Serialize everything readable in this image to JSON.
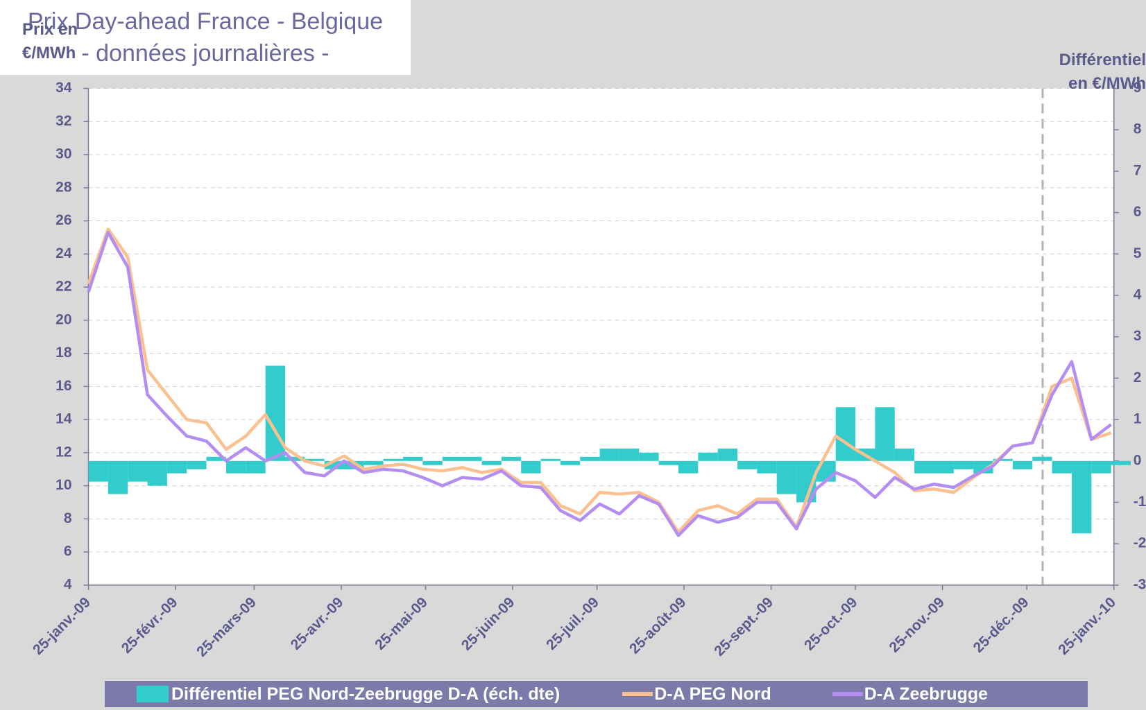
{
  "chart_data": {
    "type": "line",
    "title": "Prix Day-ahead France - Belgique",
    "subtitle": "- données journalières -",
    "ylabel": "Prix en €/MWh",
    "y2label": "Différentiel en €/MWh",
    "x": [
      "2009-01-25",
      "2009-02-01",
      "2009-02-08",
      "2009-02-15",
      "2009-02-22",
      "2009-03-01",
      "2009-03-08",
      "2009-03-15",
      "2009-03-22",
      "2009-03-29",
      "2009-04-05",
      "2009-04-12",
      "2009-04-19",
      "2009-04-26",
      "2009-05-03",
      "2009-05-10",
      "2009-05-17",
      "2009-05-24",
      "2009-05-31",
      "2009-06-07",
      "2009-06-14",
      "2009-06-21",
      "2009-06-28",
      "2009-07-05",
      "2009-07-12",
      "2009-07-19",
      "2009-07-26",
      "2009-08-02",
      "2009-08-09",
      "2009-08-16",
      "2009-08-23",
      "2009-08-30",
      "2009-09-06",
      "2009-09-13",
      "2009-09-20",
      "2009-09-27",
      "2009-10-04",
      "2009-10-11",
      "2009-10-18",
      "2009-10-25",
      "2009-11-01",
      "2009-11-08",
      "2009-11-15",
      "2009-11-22",
      "2009-11-29",
      "2009-12-06",
      "2009-12-13",
      "2009-12-20",
      "2009-12-27",
      "2010-01-03",
      "2010-01-10",
      "2010-01-17",
      "2010-01-24"
    ],
    "series": [
      {
        "name": "Différentiel PEG Nord-Zeebrugge D-A (éch. dte)",
        "type": "bar",
        "axis": "y2",
        "color": "#33cccc",
        "values": [
          -0.5,
          -0.8,
          -0.5,
          -0.6,
          -0.3,
          -0.2,
          0.1,
          -0.3,
          -0.3,
          2.3,
          0.1,
          0.05,
          -0.2,
          -0.2,
          -0.1,
          0.05,
          0.1,
          -0.1,
          0.1,
          0.1,
          -0.1,
          0.1,
          -0.3,
          0.05,
          -0.1,
          0.1,
          0.3,
          0.3,
          0.2,
          -0.1,
          -0.3,
          0.2,
          0.3,
          -0.2,
          -0.3,
          -0.8,
          -1.0,
          -0.5,
          1.3,
          0.3,
          1.3,
          0.3,
          -0.3,
          -0.3,
          -0.2,
          -0.3,
          0.05,
          -0.2,
          0.1,
          -0.3,
          -1.75,
          -0.3,
          -0.1
        ]
      },
      {
        "name": "D-A PEG Nord",
        "type": "line",
        "color": "#fac090",
        "values": [
          22.2,
          25.5,
          23.8,
          17,
          15.5,
          14,
          13.8,
          12.2,
          13,
          14.3,
          12.3,
          11.5,
          11.2,
          11.8,
          11,
          11.2,
          11.3,
          11,
          10.9,
          11.1,
          10.8,
          11,
          10.2,
          10.2,
          8.8,
          8.3,
          9.6,
          9.5,
          9.6,
          9,
          7.2,
          8.5,
          8.8,
          8.3,
          9.2,
          9.2,
          7.5,
          10.8,
          13,
          12.2,
          11.5,
          10.8,
          9.7,
          9.8,
          9.6,
          10.5,
          11.3,
          12.4,
          12.6,
          16,
          16.5,
          12.8,
          13.2
        ]
      },
      {
        "name": "D-A Zeebrugge",
        "type": "line",
        "color": "#b38ef0",
        "values": [
          21.7,
          25.3,
          23.2,
          15.5,
          14.2,
          13,
          12.7,
          11.5,
          12.3,
          11.5,
          12,
          10.8,
          10.6,
          11.5,
          10.8,
          11,
          10.9,
          10.5,
          10,
          10.5,
          10.4,
          10.9,
          10,
          9.9,
          8.5,
          7.9,
          8.9,
          8.3,
          9.4,
          8.9,
          7,
          8.2,
          7.8,
          8.1,
          9,
          9,
          7.4,
          9.8,
          10.8,
          10.3,
          9.3,
          10.5,
          9.8,
          10.1,
          9.9,
          10.6,
          11.2,
          12.4,
          12.6,
          15.5,
          17.5,
          12.8,
          13.7
        ]
      }
    ],
    "xlim": [
      "2009-01-25",
      "2010-01-25"
    ],
    "xticks": [
      {
        "value": "2009-01-25",
        "label": "25-janv.-09"
      },
      {
        "value": "2009-02-25",
        "label": "25-févr.-09"
      },
      {
        "value": "2009-03-25",
        "label": "25-mars-09"
      },
      {
        "value": "2009-04-25",
        "label": "25-avr.-09"
      },
      {
        "value": "2009-05-25",
        "label": "25-mai-09"
      },
      {
        "value": "2009-06-25",
        "label": "25-juin-09"
      },
      {
        "value": "2009-07-25",
        "label": "25-juil.-09"
      },
      {
        "value": "2009-08-25",
        "label": "25-août-09"
      },
      {
        "value": "2009-09-25",
        "label": "25-sept.-09"
      },
      {
        "value": "2009-10-25",
        "label": "25-oct.-09"
      },
      {
        "value": "2009-11-25",
        "label": "25-nov.-09"
      },
      {
        "value": "2009-12-25",
        "label": "25-déc.-09"
      },
      {
        "value": "2010-01-25",
        "label": "25-janv.-10"
      }
    ],
    "ylim": [
      4,
      34
    ],
    "yticks": [
      4,
      6,
      8,
      10,
      12,
      14,
      16,
      18,
      20,
      22,
      24,
      26,
      28,
      30,
      32,
      34
    ],
    "y2lim": [
      -3,
      9
    ],
    "y2ticks": [
      -3,
      -2,
      -1,
      0,
      1,
      2,
      3,
      4,
      5,
      6,
      7,
      8,
      9
    ],
    "grid": true
  }
}
